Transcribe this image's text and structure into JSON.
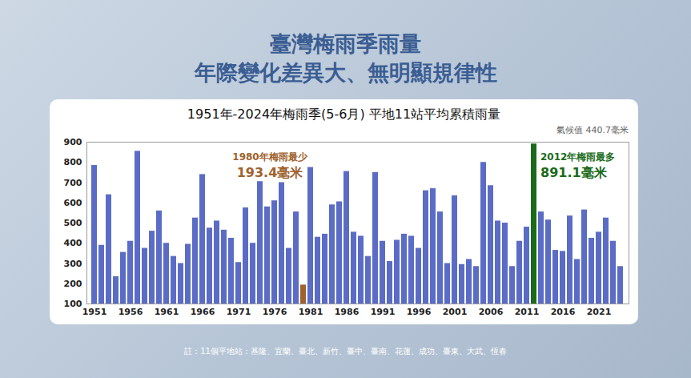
{
  "header": {
    "title": "臺灣梅雨季雨量",
    "subtitle": "年際變化差異大、無明顯規律性"
  },
  "note": "註：11個平地站：基隆、宜蘭、臺北、新竹、臺中、臺南、花蓮、成功、臺東、大武、恆春",
  "chart_data": {
    "type": "bar",
    "title": "1951年-2024年梅雨季(5-6月) 平地11站平均累積雨量",
    "climate_label": "氣候值 440.7毫米",
    "categories": [
      "1951",
      null,
      null,
      null,
      null,
      "1956",
      null,
      null,
      null,
      null,
      "1961",
      null,
      null,
      null,
      null,
      "1966",
      null,
      null,
      null,
      null,
      "1971",
      null,
      null,
      null,
      null,
      "1976",
      null,
      null,
      null,
      null,
      "1981",
      null,
      null,
      null,
      null,
      "1986",
      null,
      null,
      null,
      null,
      "1991",
      null,
      null,
      null,
      null,
      "1996",
      null,
      null,
      null,
      null,
      "2001",
      null,
      null,
      null,
      null,
      "2006",
      null,
      null,
      null,
      null,
      "2011",
      null,
      null,
      null,
      null,
      "2016",
      null,
      null,
      null,
      null,
      "2021",
      null,
      null,
      null
    ],
    "values": [
      785,
      390,
      640,
      235,
      355,
      410,
      855,
      375,
      460,
      560,
      400,
      335,
      300,
      395,
      525,
      740,
      475,
      510,
      465,
      425,
      305,
      575,
      400,
      705,
      580,
      610,
      700,
      375,
      555,
      193.4,
      775,
      430,
      445,
      590,
      605,
      755,
      455,
      435,
      335,
      750,
      410,
      310,
      415,
      445,
      435,
      375,
      660,
      670,
      555,
      300,
      635,
      295,
      320,
      285,
      800,
      685,
      510,
      500,
      285,
      410,
      480,
      891.1,
      555,
      515,
      365,
      360,
      535,
      320,
      565,
      425,
      455,
      525,
      410,
      285
    ],
    "colors": [
      "#5b6cc6",
      "#5b6cc6",
      "#5b6cc6",
      "#5b6cc6",
      "#5b6cc6",
      "#5b6cc6",
      "#5b6cc6",
      "#5b6cc6",
      "#5b6cc6",
      "#5b6cc6",
      "#5b6cc6",
      "#5b6cc6",
      "#5b6cc6",
      "#5b6cc6",
      "#5b6cc6",
      "#5b6cc6",
      "#5b6cc6",
      "#5b6cc6",
      "#5b6cc6",
      "#5b6cc6",
      "#5b6cc6",
      "#5b6cc6",
      "#5b6cc6",
      "#5b6cc6",
      "#5b6cc6",
      "#5b6cc6",
      "#5b6cc6",
      "#5b6cc6",
      "#5b6cc6",
      "#a0622d",
      "#5b6cc6",
      "#5b6cc6",
      "#5b6cc6",
      "#5b6cc6",
      "#5b6cc6",
      "#5b6cc6",
      "#5b6cc6",
      "#5b6cc6",
      "#5b6cc6",
      "#5b6cc6",
      "#5b6cc6",
      "#5b6cc6",
      "#5b6cc6",
      "#5b6cc6",
      "#5b6cc6",
      "#5b6cc6",
      "#5b6cc6",
      "#5b6cc6",
      "#5b6cc6",
      "#5b6cc6",
      "#5b6cc6",
      "#5b6cc6",
      "#5b6cc6",
      "#5b6cc6",
      "#5b6cc6",
      "#5b6cc6",
      "#5b6cc6",
      "#5b6cc6",
      "#5b6cc6",
      "#5b6cc6",
      "#5b6cc6",
      "#1a6b1a",
      "#5b6cc6",
      "#5b6cc6",
      "#5b6cc6",
      "#5b6cc6",
      "#5b6cc6",
      "#5b6cc6",
      "#5b6cc6",
      "#5b6cc6",
      "#5b6cc6",
      "#5b6cc6",
      "#5b6cc6",
      "#5b6cc6"
    ],
    "annotations": [
      {
        "text": "1980年梅雨最少",
        "value_text": "193.4毫米",
        "color": "#a0622d"
      },
      {
        "text": "2012年梅雨最多",
        "value_text": "891.1毫米",
        "color": "#1a6b1a"
      }
    ],
    "ylim": [
      100,
      900
    ],
    "yticks": [
      100,
      200,
      300,
      400,
      500,
      600,
      700,
      800,
      900
    ],
    "grid": false
  }
}
